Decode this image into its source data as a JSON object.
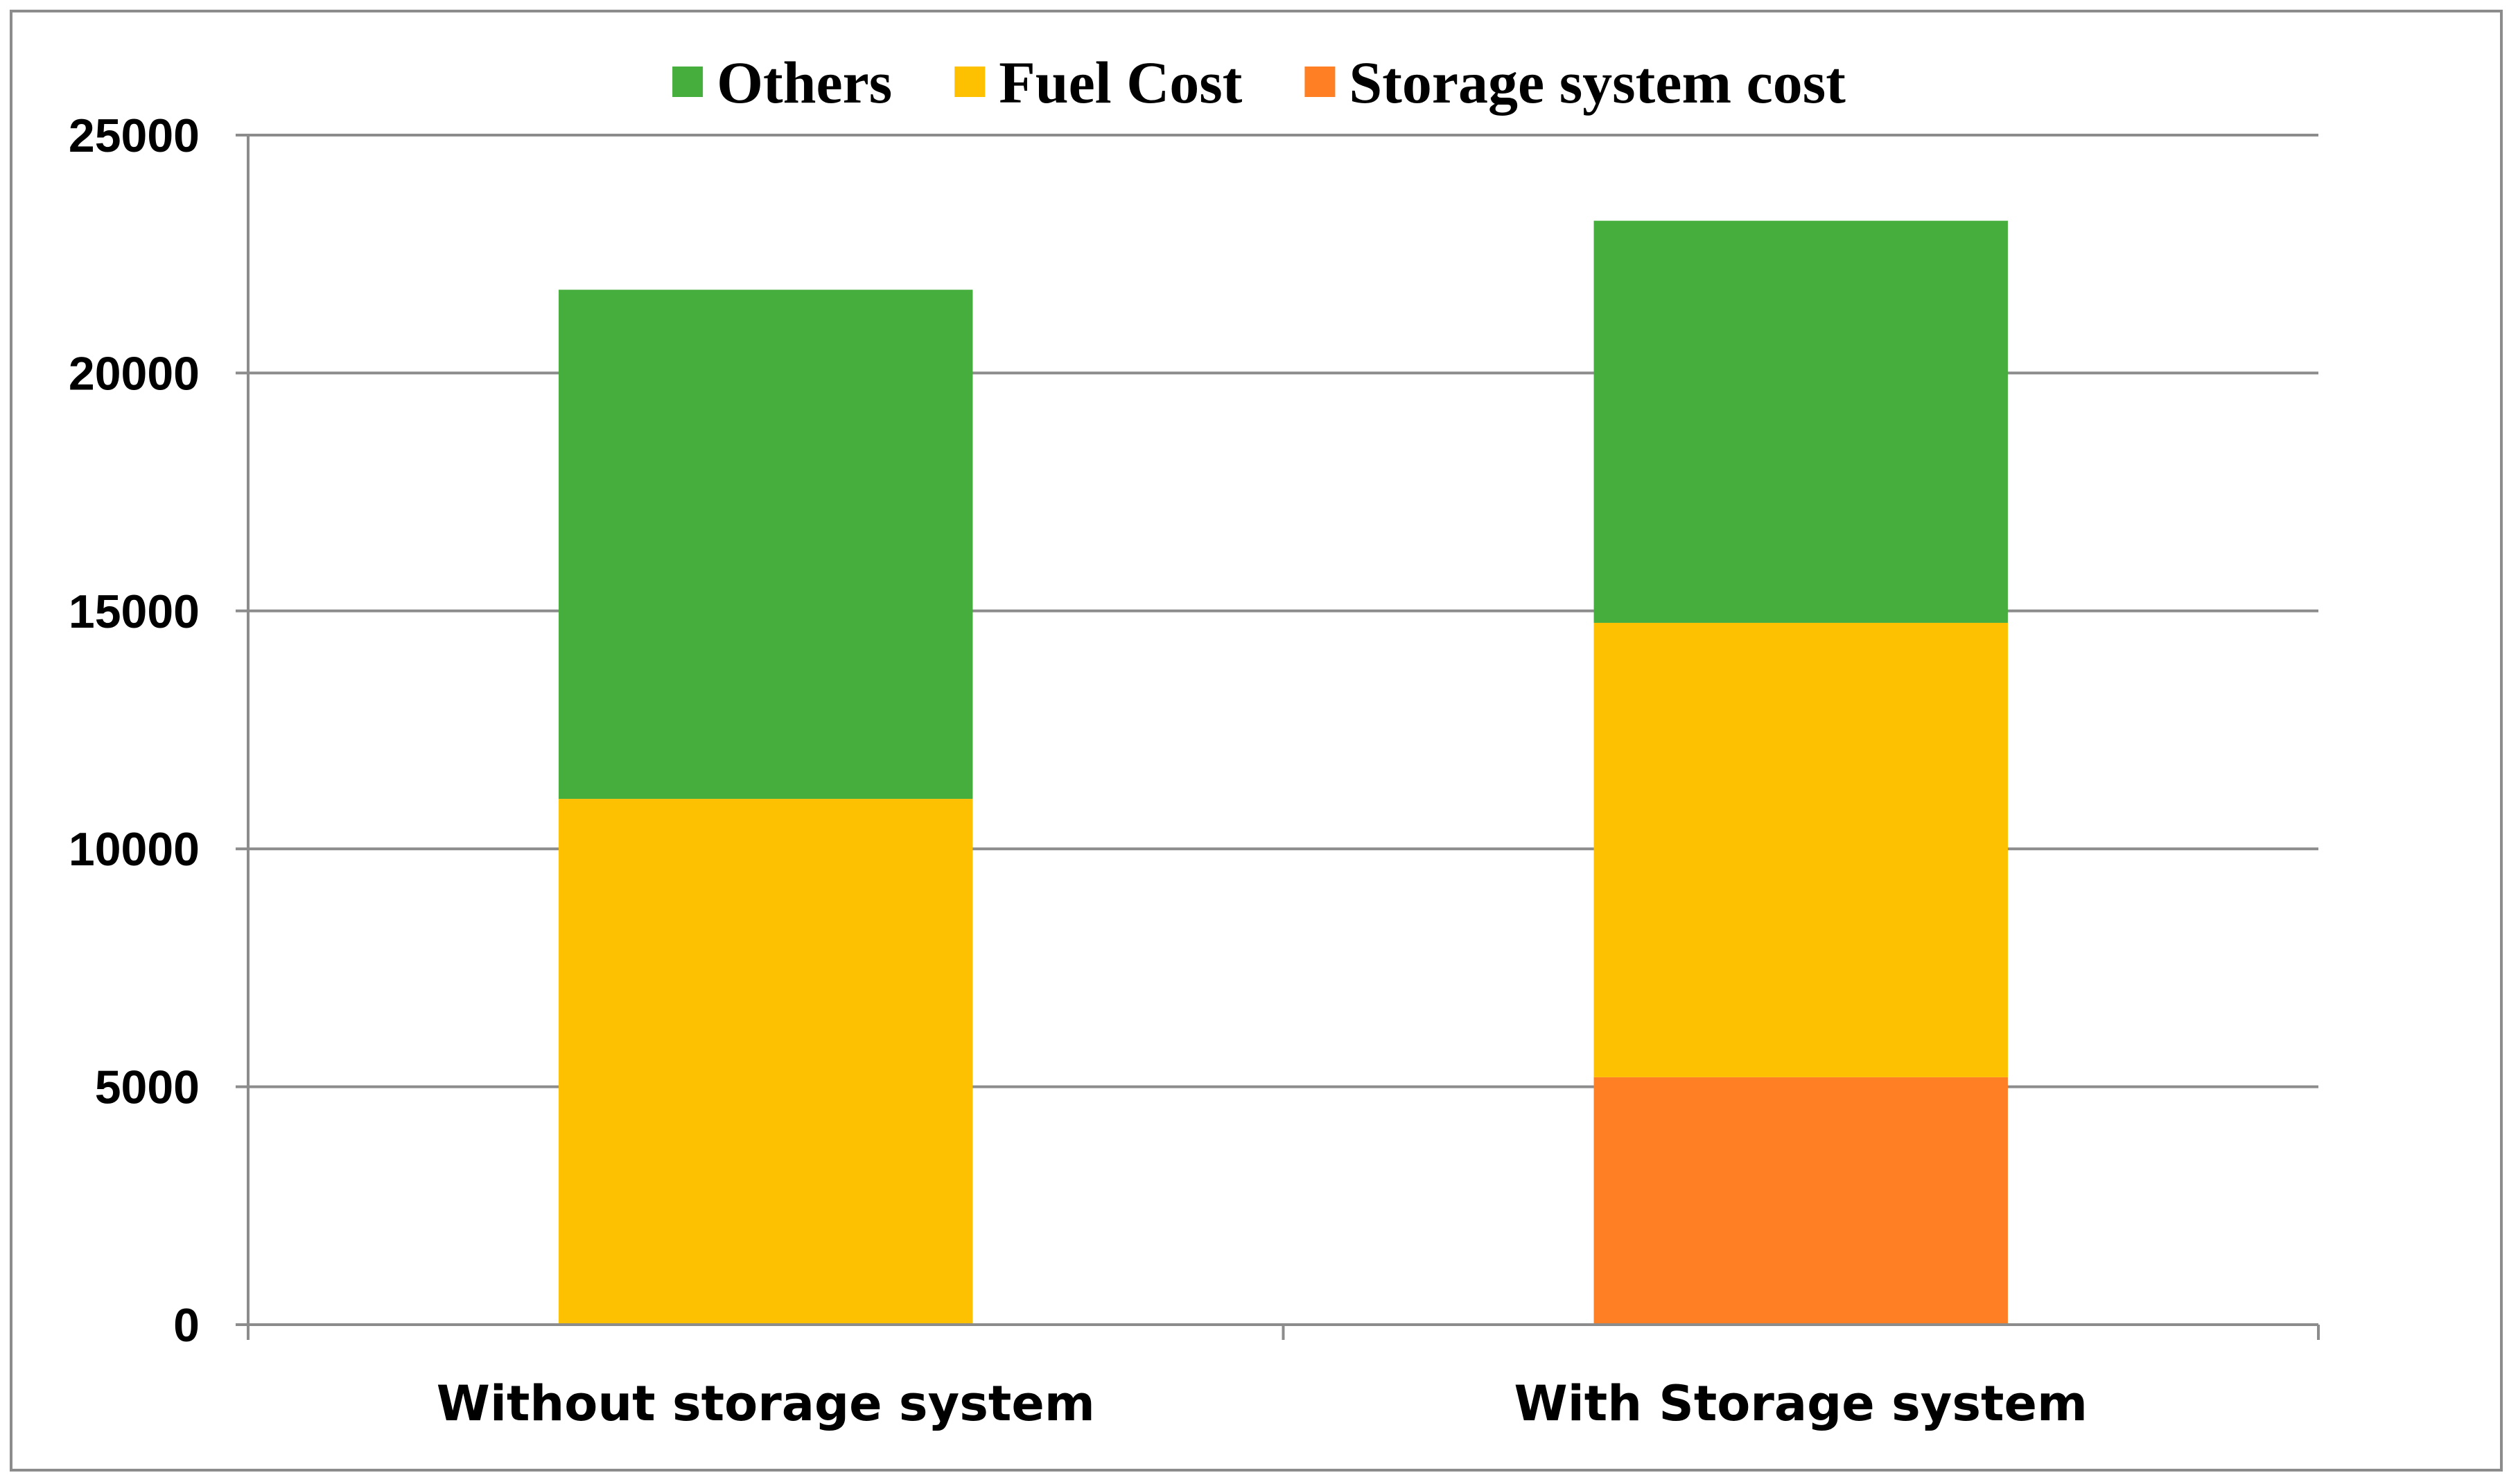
{
  "chart_data": {
    "type": "bar",
    "stacked": true,
    "categories": [
      "Without storage system",
      "With Storage system"
    ],
    "series": [
      {
        "name": "Storage system cost",
        "color": "#fe7f24",
        "values": [
          0,
          5200
        ]
      },
      {
        "name": "Fuel Cost",
        "color": "#fdc101",
        "values": [
          11050,
          9550
        ]
      },
      {
        "name": "Others",
        "color": "#45ae3c",
        "values": [
          10700,
          8450
        ]
      }
    ],
    "legend_order": [
      "Others",
      "Fuel Cost",
      "Storage system cost"
    ],
    "legend_position": "top",
    "ylim": [
      0,
      25000
    ],
    "yticks": [
      "0",
      "5000",
      "10000",
      "15000",
      "20000",
      "25000"
    ],
    "title": "",
    "xlabel": "",
    "ylabel": "",
    "grid": true,
    "colors": {
      "grid": "#8c8c8c",
      "axis": "#8c8c8c",
      "frame": "#8c8c8c"
    }
  }
}
